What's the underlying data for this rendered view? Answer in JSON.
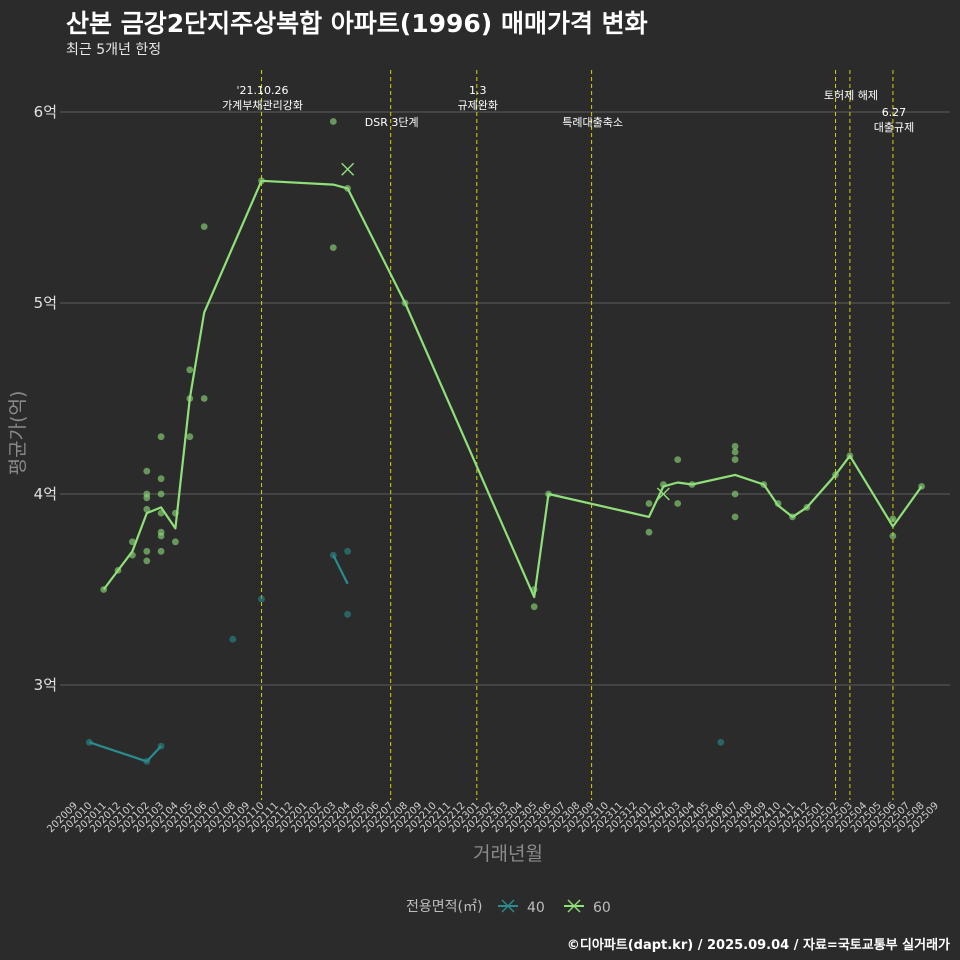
{
  "header": {
    "title": "산본 금강2단지주상복합 아파트(1996) 매매가격 변화",
    "subtitle": "최근 5개년 한정"
  },
  "caption": "©디아파트(dapt.kr) / 2025.09.04 / 자료=국토교통부 실거래가",
  "chart_data": {
    "type": "line",
    "xlabel": "거래년월",
    "ylabel": "평균가(억)",
    "ylim": [
      2.45,
      6.22
    ],
    "y_ticks": [
      3,
      4,
      5,
      6
    ],
    "y_tick_labels": [
      "3억",
      "4억",
      "5억",
      "6억"
    ],
    "x_months": [
      "202009",
      "202010",
      "202011",
      "202012",
      "202101",
      "202102",
      "202103",
      "202104",
      "202105",
      "202106",
      "202107",
      "202108",
      "202109",
      "202110",
      "202111",
      "202112",
      "202201",
      "202202",
      "202203",
      "202204",
      "202205",
      "202206",
      "202207",
      "202208",
      "202209",
      "202210",
      "202211",
      "202212",
      "202301",
      "202302",
      "202303",
      "202304",
      "202305",
      "202306",
      "202307",
      "202308",
      "202309",
      "202310",
      "202311",
      "202312",
      "202401",
      "202402",
      "202403",
      "202404",
      "202405",
      "202406",
      "202407",
      "202408",
      "202409",
      "202410",
      "202411",
      "202412",
      "202501",
      "202502",
      "202503",
      "202504",
      "202505",
      "202506",
      "202507",
      "202508",
      "202509"
    ],
    "grid": "horizontal",
    "legend": {
      "title": "전용면적(㎡)",
      "position": "bottom",
      "items": [
        {
          "label": "40",
          "color": "#2a8c8c"
        },
        {
          "label": "60",
          "color": "#90e07a"
        }
      ]
    },
    "events": [
      {
        "month": "202110",
        "label_lines": [
          "'21.10.26",
          "가계부채관리강화"
        ],
        "level": 1
      },
      {
        "month": "202207",
        "label_lines": [
          "DSR 3단계"
        ],
        "level": 2
      },
      {
        "month": "202301",
        "label_lines": [
          "1.3",
          "규제완화"
        ],
        "level": 1
      },
      {
        "month": "202309",
        "label_lines": [
          "특례대출축소"
        ],
        "level": 2
      },
      {
        "month": "202502",
        "label_lines": [],
        "level": 1
      },
      {
        "month": "202503",
        "label_lines": [
          "토허제 해제"
        ],
        "level": 1
      },
      {
        "month": "202506",
        "label_lines": [
          "6.27",
          "대출규제"
        ],
        "level": 2
      }
    ],
    "series": [
      {
        "name": "40",
        "color": "#2a8c8c",
        "line": [
          {
            "x": "202010",
            "y": 2.7
          },
          {
            "x": "202102",
            "y": 2.6
          },
          {
            "x": "202103",
            "y": 2.68
          }
        ],
        "line2": [
          {
            "x": "202203",
            "y": 3.68
          },
          {
            "x": "202204",
            "y": 3.53
          }
        ],
        "points": [
          {
            "x": "202010",
            "y": 2.7
          },
          {
            "x": "202102",
            "y": 2.6
          },
          {
            "x": "202103",
            "y": 2.68
          },
          {
            "x": "202108",
            "y": 3.24
          },
          {
            "x": "202110",
            "y": 3.45
          },
          {
            "x": "202203",
            "y": 3.68
          },
          {
            "x": "202204",
            "y": 3.7
          },
          {
            "x": "202204",
            "y": 3.37
          },
          {
            "x": "202406",
            "y": 2.7
          }
        ]
      },
      {
        "name": "60",
        "color": "#90e07a",
        "line": [
          {
            "x": "202011",
            "y": 3.5
          },
          {
            "x": "202012",
            "y": 3.6
          },
          {
            "x": "202101",
            "y": 3.7
          },
          {
            "x": "202102",
            "y": 3.9
          },
          {
            "x": "202103",
            "y": 3.93
          },
          {
            "x": "202104",
            "y": 3.82
          },
          {
            "x": "202105",
            "y": 4.5
          },
          {
            "x": "202106",
            "y": 4.95
          },
          {
            "x": "202110",
            "y": 5.64
          },
          {
            "x": "202203",
            "y": 5.62
          },
          {
            "x": "202204",
            "y": 5.6
          },
          {
            "x": "202208",
            "y": 5.0
          },
          {
            "x": "202305",
            "y": 3.46
          },
          {
            "x": "202306",
            "y": 4.0
          },
          {
            "x": "202401",
            "y": 3.88
          },
          {
            "x": "202402",
            "y": 4.04
          },
          {
            "x": "202403",
            "y": 4.06
          },
          {
            "x": "202404",
            "y": 4.05
          },
          {
            "x": "202407",
            "y": 4.1
          },
          {
            "x": "202409",
            "y": 4.05
          },
          {
            "x": "202410",
            "y": 3.94
          },
          {
            "x": "202411",
            "y": 3.88
          },
          {
            "x": "202412",
            "y": 3.93
          },
          {
            "x": "202502",
            "y": 4.1
          },
          {
            "x": "202503",
            "y": 4.2
          },
          {
            "x": "202506",
            "y": 3.83
          },
          {
            "x": "202508",
            "y": 4.04
          }
        ],
        "points": [
          {
            "x": "202011",
            "y": 3.5
          },
          {
            "x": "202012",
            "y": 3.6
          },
          {
            "x": "202101",
            "y": 3.68
          },
          {
            "x": "202101",
            "y": 3.75
          },
          {
            "x": "202102",
            "y": 4.12
          },
          {
            "x": "202102",
            "y": 4.0
          },
          {
            "x": "202102",
            "y": 3.98
          },
          {
            "x": "202102",
            "y": 3.92
          },
          {
            "x": "202102",
            "y": 3.7
          },
          {
            "x": "202102",
            "y": 3.65
          },
          {
            "x": "202103",
            "y": 4.3
          },
          {
            "x": "202103",
            "y": 4.08
          },
          {
            "x": "202103",
            "y": 4.0
          },
          {
            "x": "202103",
            "y": 3.9
          },
          {
            "x": "202103",
            "y": 3.8
          },
          {
            "x": "202103",
            "y": 3.78
          },
          {
            "x": "202103",
            "y": 3.7
          },
          {
            "x": "202104",
            "y": 3.9
          },
          {
            "x": "202104",
            "y": 3.75
          },
          {
            "x": "202105",
            "y": 4.65
          },
          {
            "x": "202105",
            "y": 4.5
          },
          {
            "x": "202105",
            "y": 4.3
          },
          {
            "x": "202106",
            "y": 5.4
          },
          {
            "x": "202106",
            "y": 4.5
          },
          {
            "x": "202110",
            "y": 5.64
          },
          {
            "x": "202203",
            "y": 5.95
          },
          {
            "x": "202203",
            "y": 5.29
          },
          {
            "x": "202204",
            "y": 5.6
          },
          {
            "x": "202208",
            "y": 5.0
          },
          {
            "x": "202305",
            "y": 3.5
          },
          {
            "x": "202305",
            "y": 3.41
          },
          {
            "x": "202306",
            "y": 4.0
          },
          {
            "x": "202401",
            "y": 3.95
          },
          {
            "x": "202401",
            "y": 3.8
          },
          {
            "x": "202402",
            "y": 4.05
          },
          {
            "x": "202403",
            "y": 4.18
          },
          {
            "x": "202403",
            "y": 3.95
          },
          {
            "x": "202404",
            "y": 4.05
          },
          {
            "x": "202407",
            "y": 4.25
          },
          {
            "x": "202407",
            "y": 4.22
          },
          {
            "x": "202407",
            "y": 4.18
          },
          {
            "x": "202407",
            "y": 4.0
          },
          {
            "x": "202407",
            "y": 3.88
          },
          {
            "x": "202409",
            "y": 4.05
          },
          {
            "x": "202410",
            "y": 3.95
          },
          {
            "x": "202411",
            "y": 3.88
          },
          {
            "x": "202412",
            "y": 3.93
          },
          {
            "x": "202502",
            "y": 4.1
          },
          {
            "x": "202503",
            "y": 4.2
          },
          {
            "x": "202506",
            "y": 3.87
          },
          {
            "x": "202506",
            "y": 3.78
          },
          {
            "x": "202508",
            "y": 4.04
          }
        ],
        "x_marks": [
          {
            "x": "202204",
            "y": 5.7
          },
          {
            "x": "202402",
            "y": 4.0
          }
        ]
      }
    ]
  }
}
